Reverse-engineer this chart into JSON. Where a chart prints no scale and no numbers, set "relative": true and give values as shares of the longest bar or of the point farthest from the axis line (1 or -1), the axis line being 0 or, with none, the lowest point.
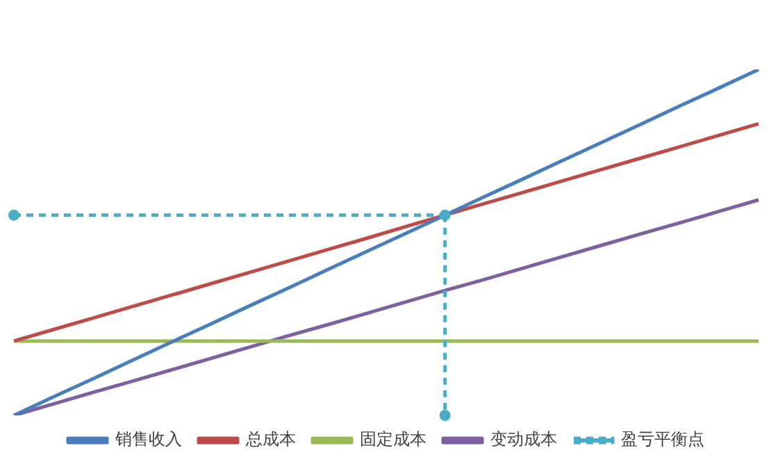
{
  "chart_data": {
    "type": "line",
    "relative": true,
    "grid": false,
    "legend": "bottom",
    "marker": "none",
    "line_style": "solid",
    "categories": [
      null,
      null,
      null,
      null,
      null,
      null,
      null,
      null,
      null,
      null,
      null,
      null,
      null,
      null,
      null,
      null,
      null,
      null,
      null,
      null
    ],
    "series": [
      {
        "name": "销售收入",
        "color": "#4a7ebb",
        "values": [
          0,
          0.053,
          0.105,
          0.158,
          0.211,
          0.263,
          0.316,
          0.368,
          0.421,
          0.474,
          0.526,
          0.579,
          0.632,
          0.684,
          0.737,
          0.789,
          0.842,
          0.895,
          0.947,
          1
        ]
      },
      {
        "name": "总成本",
        "color": "#be4b48",
        "values": [
          0.215,
          0.248,
          0.281,
          0.314,
          0.347,
          0.38,
          0.413,
          0.446,
          0.479,
          0.512,
          0.546,
          0.579,
          0.612,
          0.645,
          0.678,
          0.711,
          0.744,
          0.777,
          0.81,
          0.843
        ]
      },
      {
        "name": "固定成本",
        "color": "#98b954",
        "values": [
          0.215,
          0.215,
          0.215,
          0.215,
          0.215,
          0.215,
          0.215,
          0.215,
          0.215,
          0.215,
          0.215,
          0.215,
          0.215,
          0.215,
          0.215,
          0.215,
          0.215,
          0.215,
          0.215,
          0.215
        ]
      },
      {
        "name": "变动成本",
        "color": "#7d60a0",
        "values": [
          0,
          0.033,
          0.066,
          0.098,
          0.131,
          0.164,
          0.197,
          0.23,
          0.262,
          0.295,
          0.328,
          0.361,
          0.393,
          0.426,
          0.459,
          0.492,
          0.525,
          0.557,
          0.59,
          0.623
        ]
      },
      {
        "name": "盈亏平衡点",
        "color": "#4bacc6",
        "values": [
          0.579,
          null,
          null,
          null,
          null,
          null,
          null,
          null,
          null,
          null,
          null,
          0.579,
          null,
          null,
          null,
          null,
          null,
          null,
          null,
          null
        ],
        "marker": "circle",
        "line_style": "dashed"
      }
    ]
  }
}
